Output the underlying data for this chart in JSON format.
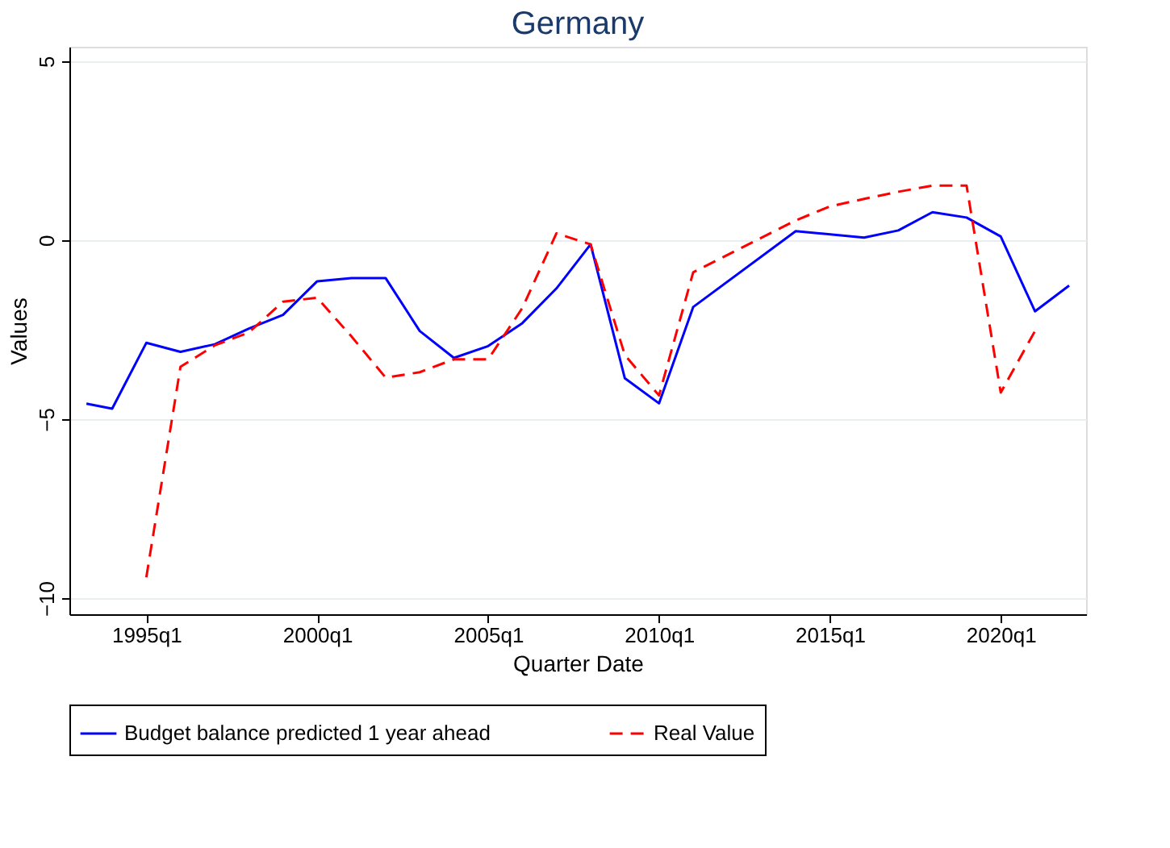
{
  "chart_data": {
    "type": "line",
    "title": "Germany",
    "xlabel": "Quarter Date",
    "ylabel": "Values",
    "xlim": [
      "1992-10",
      "2022-07"
    ],
    "xticks": [
      {
        "value": "1995-01",
        "label": "1995q1"
      },
      {
        "value": "2000-01",
        "label": "2000q1"
      },
      {
        "value": "2005-01",
        "label": "2005q1"
      },
      {
        "value": "2010-01",
        "label": "2010q1"
      },
      {
        "value": "2015-01",
        "label": "2015q1"
      },
      {
        "value": "2020-01",
        "label": "2020q1"
      }
    ],
    "ylim": [
      -10.45,
      5.4
    ],
    "yticks": [
      -10,
      -5,
      0,
      5
    ],
    "grid": "y",
    "legend": "bottom",
    "series": [
      {
        "name": "Budget balance predicted 1 year ahead",
        "color": "#0000ff",
        "line_style": "solid",
        "x": [
          "1993-04",
          "1994-01",
          "1995-01",
          "1996-01",
          "1997-01",
          "1998-01",
          "1999-01",
          "2000-01",
          "2001-01",
          "2002-01",
          "2003-01",
          "2004-01",
          "2005-01",
          "2006-01",
          "2007-01",
          "2008-01",
          "2009-01",
          "2010-01",
          "2011-01",
          "2014-01",
          "2016-01",
          "2017-01",
          "2018-01",
          "2019-01",
          "2020-01",
          "2021-01",
          "2022-01"
        ],
        "values": [
          -4.57,
          -4.71,
          -2.87,
          -3.12,
          -2.91,
          -2.47,
          -2.09,
          -1.15,
          -1.06,
          -1.06,
          -2.54,
          -3.29,
          -2.96,
          -2.32,
          -1.35,
          -0.12,
          -3.86,
          -4.56,
          -1.87,
          0.25,
          0.07,
          0.27,
          0.78,
          0.63,
          0.1,
          -1.99,
          -1.27
        ]
      },
      {
        "name": "Real Value",
        "color": "#ff0000",
        "line_style": "dashed",
        "x": [
          "1995-01",
          "1996-01",
          "1997-01",
          "1998-01",
          "1999-01",
          "2000-01",
          "2001-01",
          "2002-01",
          "2003-01",
          "2004-01",
          "2005-01",
          "2006-01",
          "2007-01",
          "2008-01",
          "2009-01",
          "2010-01",
          "2011-01",
          "2014-01",
          "2015-01",
          "2016-01",
          "2017-01",
          "2018-01",
          "2019-01",
          "2020-01",
          "2021-01"
        ],
        "values": [
          -9.42,
          -3.54,
          -2.94,
          -2.58,
          -1.72,
          -1.61,
          -2.69,
          -3.84,
          -3.69,
          -3.33,
          -3.33,
          -1.9,
          0.19,
          -0.12,
          -3.21,
          -4.34,
          -0.9,
          0.55,
          0.94,
          1.15,
          1.35,
          1.52,
          1.52,
          -4.26,
          -2.54
        ]
      }
    ]
  }
}
